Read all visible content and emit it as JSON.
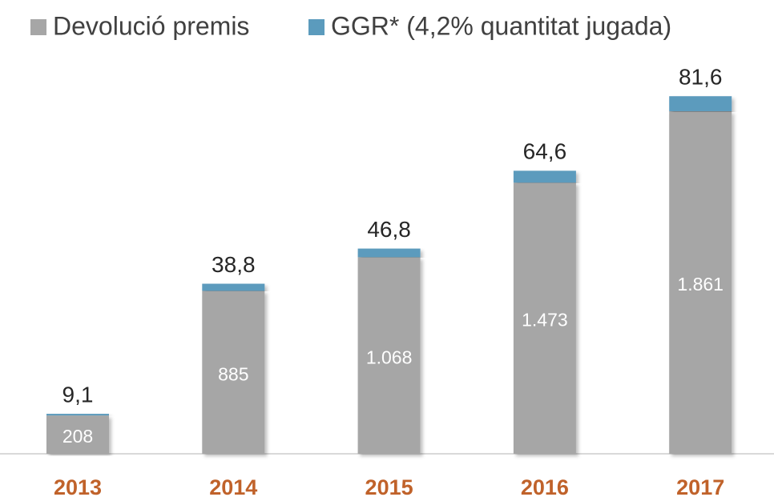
{
  "chart_data": {
    "type": "stacked-bar",
    "categories": [
      "2013",
      "2014",
      "2015",
      "2016",
      "2017"
    ],
    "series": [
      {
        "name": "Devolució premis",
        "color": "#a6a6a6",
        "values": [
          208,
          885,
          1068,
          1473,
          1861
        ],
        "value_labels": [
          "208",
          "885",
          "1.068",
          "1.473",
          "1.861"
        ]
      },
      {
        "name": "GGR* (4,2% quantitat jugada)",
        "color": "#5b9bbd",
        "values": [
          9.1,
          38.8,
          46.8,
          64.6,
          81.6
        ],
        "value_labels": [
          "9,1",
          "38,8",
          "46,8",
          "64,6",
          "81,6"
        ]
      }
    ],
    "ylim": [
      0,
      2000
    ],
    "category_color": "#c0622a"
  }
}
